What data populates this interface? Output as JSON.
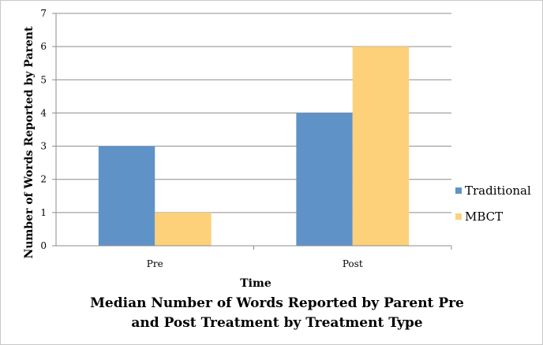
{
  "chart_data": {
    "type": "bar",
    "title_lines": [
      "Median Number of Words Reported by Parent Pre",
      "and Post Treatment by Treatment Type"
    ],
    "xlabel": "Time",
    "ylabel": "Number of Words Reported by Parent",
    "categories": [
      "Pre",
      "Post"
    ],
    "series": [
      {
        "name": "Traditional",
        "values": [
          3,
          4
        ],
        "color": "#5f93c8"
      },
      {
        "name": "MBCT",
        "values": [
          1,
          6
        ],
        "color": "#fdd07a"
      }
    ],
    "ylim": [
      0,
      7
    ],
    "yticks": [
      0,
      1,
      2,
      3,
      4,
      5,
      6,
      7
    ],
    "grid": true,
    "legend": "right"
  }
}
